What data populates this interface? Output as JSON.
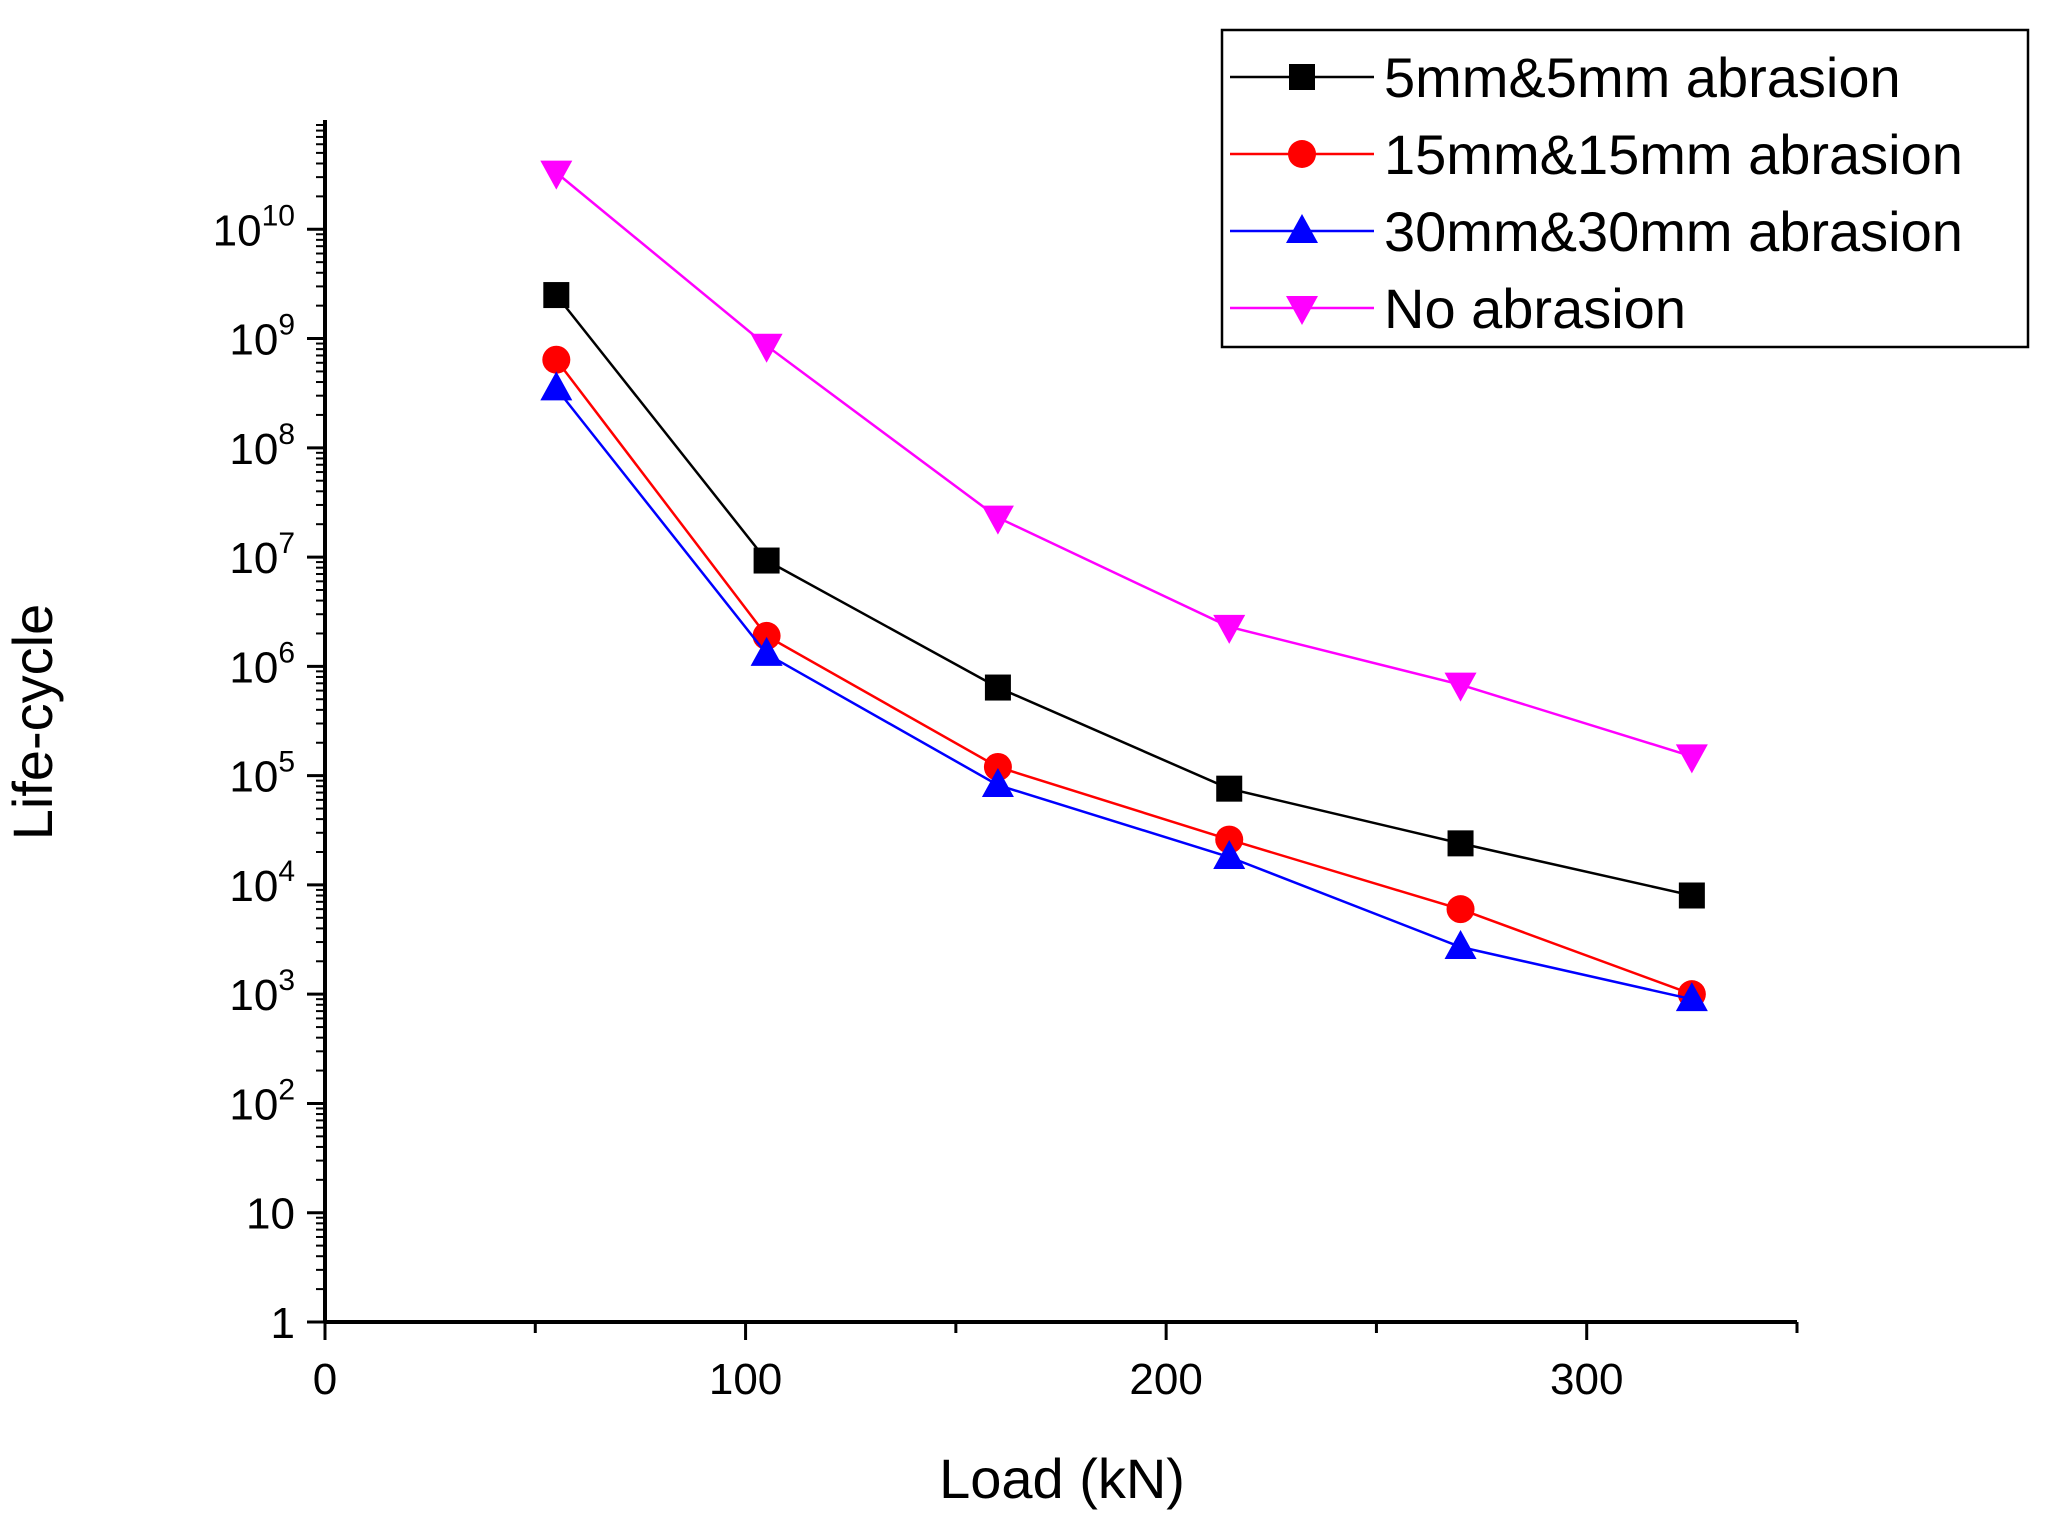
{
  "chart_data": {
    "type": "line",
    "title": "",
    "xlabel": "Load (kN)",
    "ylabel": "Life-cycle",
    "xlim": [
      0,
      350
    ],
    "ylim": [
      1,
      100000000000
    ],
    "yscale": "log",
    "grid": false,
    "legend_position": "top-right",
    "x": [
      55,
      105,
      160,
      215,
      270,
      325
    ],
    "x_ticks": [
      {
        "value": 0,
        "label": "0"
      },
      {
        "value": 100,
        "label": "100"
      },
      {
        "value": 200,
        "label": "200"
      },
      {
        "value": 300,
        "label": "300"
      }
    ],
    "x_minor_ticks": [
      50,
      150,
      250,
      350
    ],
    "y_ticks": [
      {
        "value": 1,
        "base": "1",
        "exp": ""
      },
      {
        "value": 10,
        "base": "10",
        "exp": ""
      },
      {
        "value": 100,
        "base": "10",
        "exp": "2"
      },
      {
        "value": 1000,
        "base": "10",
        "exp": "3"
      },
      {
        "value": 10000,
        "base": "10",
        "exp": "4"
      },
      {
        "value": 100000,
        "base": "10",
        "exp": "5"
      },
      {
        "value": 1000000,
        "base": "10",
        "exp": "6"
      },
      {
        "value": 10000000,
        "base": "10",
        "exp": "7"
      },
      {
        "value": 100000000,
        "base": "10",
        "exp": "8"
      },
      {
        "value": 1000000000,
        "base": "10",
        "exp": "9"
      },
      {
        "value": 10000000000,
        "base": "10",
        "exp": "10"
      }
    ],
    "series": [
      {
        "name": "5mm&5mm abrasion",
        "color": "#000000",
        "marker": "square",
        "values": [
          2500000000,
          9300000,
          640000,
          76000,
          24000,
          8000
        ]
      },
      {
        "name": "15mm&15mm abrasion",
        "color": "#ff0000",
        "marker": "circle",
        "values": [
          640000000,
          1900000,
          120000,
          26000,
          6000,
          1000
        ]
      },
      {
        "name": "30mm&30mm abrasion",
        "color": "#0000ff",
        "marker": "triangle-up",
        "values": [
          350000000,
          1300000,
          82000,
          18000,
          2700,
          900
        ]
      },
      {
        "name": "No abrasion",
        "color": "#ff00ff",
        "marker": "triangle-down",
        "values": [
          33000000000,
          860000000,
          23000000,
          2300000,
          680000,
          150000
        ]
      }
    ]
  }
}
